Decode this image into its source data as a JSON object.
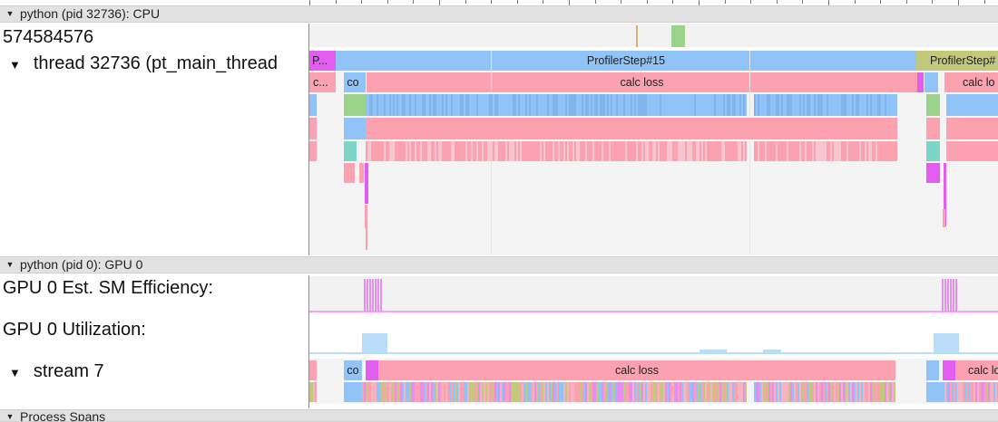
{
  "ruler": {
    "ticks": 27
  },
  "cpu_process": {
    "header": "python (pid 32736): CPU",
    "counter_value": "574584576",
    "thread_label": "thread 32736 (pt_main_thread",
    "row0": [
      {
        "label": "P...",
        "color": "#e35ef0"
      },
      {
        "label": "ProfilerStep#15",
        "color": "#90c3f7"
      },
      {
        "label": "ProfilerStep#",
        "color": "#c2c97a"
      }
    ],
    "row1": [
      {
        "label": "c...",
        "color": "#fba1b0"
      },
      {
        "label": "co",
        "color": "#90c3f7"
      },
      {
        "label": "calc loss",
        "color": "#fba1b0"
      },
      {
        "label": "calc lo",
        "color": "#fba1b0"
      }
    ]
  },
  "gpu_process": {
    "header": "python (pid 0): GPU 0",
    "sm_efficiency_label": "GPU 0 Est. SM Efficiency:",
    "utilization_label": "GPU 0 Utilization:",
    "stream_label": "stream 7",
    "stream_row": [
      {
        "label": "co",
        "color": "#90c3f7"
      },
      {
        "label": "calc loss",
        "color": "#fba1b0"
      },
      {
        "label": "calc los",
        "color": "#fba1b0"
      }
    ]
  },
  "spans_header": "Process Spans",
  "colors": {
    "pink": "#fba1b0",
    "blue": "#90c3f7",
    "magenta": "#e35ef0",
    "olive": "#c2c97a",
    "green": "#9bd38a",
    "teal": "#7cd6c8",
    "header_bg": "#e2e2e2"
  }
}
